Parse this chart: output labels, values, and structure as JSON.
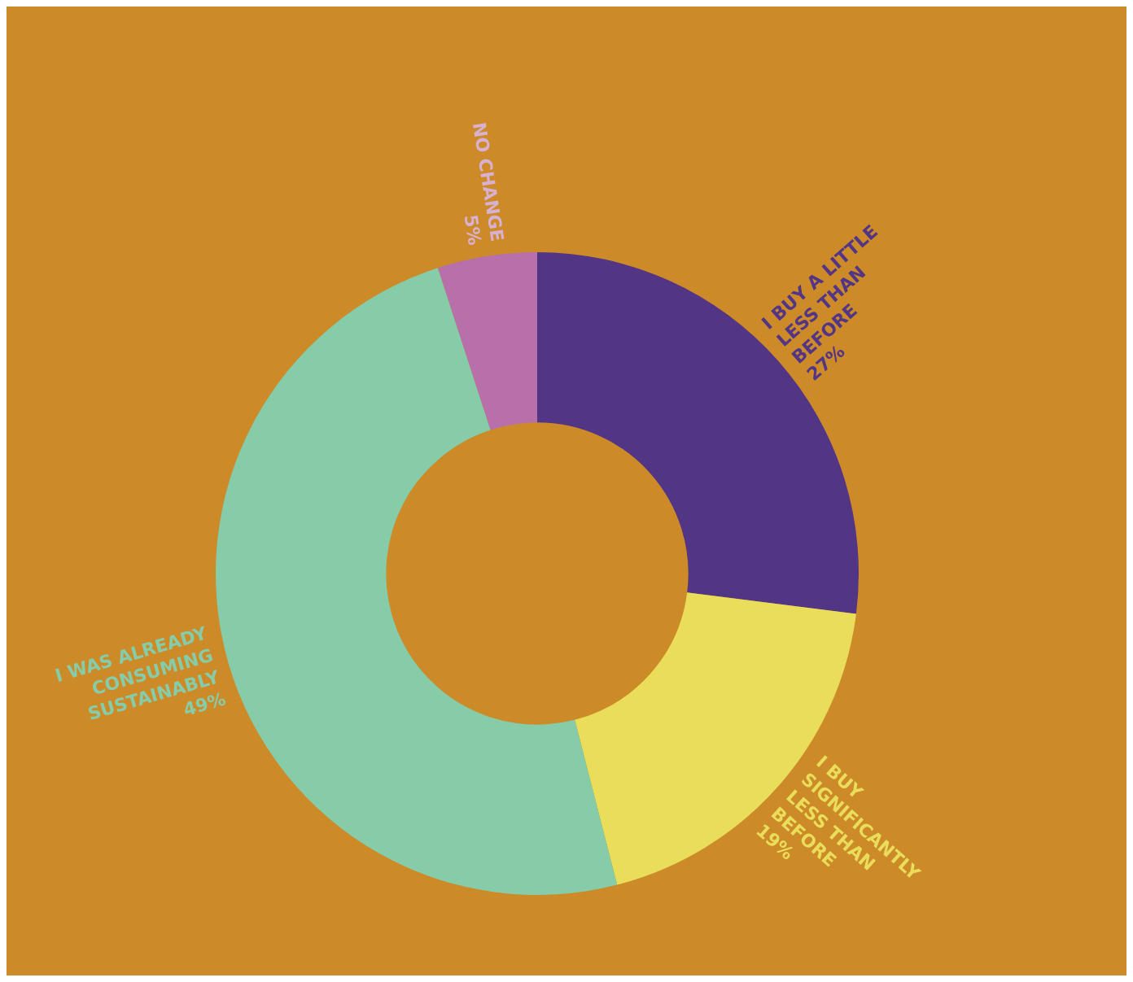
{
  "chart_data": {
    "type": "donut",
    "categories": [
      "I BUY A LITTLE LESS THAN BEFORE",
      "I BUY SIGNIFICANTLY LESS THAN BEFORE",
      "I WAS ALREADY CONSUMING SUSTAINABLY",
      "NO CHANGE"
    ],
    "values": [
      27,
      19,
      49,
      5
    ],
    "colors": [
      "#523585",
      "#e9dd5a",
      "#87cca9",
      "#b870aa"
    ],
    "value_labels": [
      "27%",
      "19%",
      "49%",
      "5%"
    ]
  }
}
